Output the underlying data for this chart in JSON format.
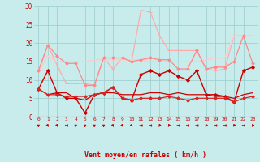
{
  "title": "",
  "xlabel": "Vent moyen/en rafales ( km/h )",
  "ylabel": "",
  "xlim": [
    -0.5,
    23.5
  ],
  "ylim": [
    0,
    30
  ],
  "yticks": [
    0,
    5,
    10,
    15,
    20,
    25,
    30
  ],
  "xticks": [
    0,
    1,
    2,
    3,
    4,
    5,
    6,
    7,
    8,
    9,
    10,
    11,
    12,
    13,
    14,
    15,
    16,
    17,
    18,
    19,
    20,
    21,
    22,
    23
  ],
  "background_color": "#c8ecec",
  "grid_color": "#99cccc",
  "arrow_row_color": "#cc0000",
  "series": [
    {
      "y": [
        7.5,
        12.5,
        6.5,
        5,
        5,
        1,
        6,
        6.5,
        8,
        5,
        4.5,
        11.5,
        12.5,
        11.5,
        12.5,
        11,
        10,
        12.5,
        6,
        6,
        5.5,
        4,
        12.5,
        13.5
      ],
      "color": "#cc0000",
      "linewidth": 1.0,
      "marker": "D",
      "markersize": 2.0,
      "alpha": 1.0
    },
    {
      "y": [
        7.5,
        6.0,
        6.5,
        6.5,
        5.0,
        4.5,
        6.0,
        6.5,
        6.5,
        6.0,
        6.0,
        6.0,
        6.5,
        6.5,
        6.0,
        6.5,
        6.0,
        6.0,
        6.0,
        5.5,
        5.5,
        5.0,
        6.0,
        6.5
      ],
      "color": "#cc0000",
      "linewidth": 0.9,
      "marker": null,
      "markersize": 0,
      "alpha": 1.0
    },
    {
      "y": [
        12.5,
        19.5,
        14.0,
        9.0,
        9.0,
        9.0,
        8.5,
        16.0,
        13.0,
        16.0,
        15.0,
        29.0,
        28.5,
        22.0,
        18.0,
        18.0,
        18.0,
        18.0,
        13.0,
        12.5,
        13.0,
        22.0,
        22.0,
        22.0
      ],
      "color": "#ffaaaa",
      "linewidth": 0.9,
      "marker": "+",
      "markersize": 3.5,
      "alpha": 1.0
    },
    {
      "y": [
        12.5,
        16.5,
        15.0,
        15.0,
        15.0,
        15.0,
        15.5,
        15.5,
        15.5,
        15.5,
        15.5,
        15.5,
        15.0,
        15.0,
        15.0,
        15.0,
        15.0,
        15.0,
        15.5,
        16.0,
        16.0,
        22.0,
        22.0,
        22.0
      ],
      "color": "#ffcccc",
      "linewidth": 1.2,
      "marker": null,
      "markersize": 0,
      "alpha": 1.0
    },
    {
      "y": [
        12.5,
        19.5,
        16.5,
        14.5,
        14.5,
        8.5,
        8.5,
        16.0,
        16.0,
        16.0,
        15.0,
        15.5,
        16.0,
        15.5,
        15.5,
        13.0,
        13.0,
        18.0,
        13.0,
        13.5,
        13.5,
        15.0,
        22.0,
        14.5
      ],
      "color": "#ff8888",
      "linewidth": 0.9,
      "marker": "D",
      "markersize": 1.8,
      "alpha": 1.0
    },
    {
      "y": [
        7.5,
        6.0,
        6.0,
        5.5,
        5.5,
        5.5,
        6.0,
        6.5,
        8.0,
        5.0,
        4.5,
        5.0,
        5.0,
        5.0,
        5.5,
        5.0,
        4.5,
        5.0,
        5.0,
        5.0,
        5.0,
        4.0,
        5.0,
        5.5
      ],
      "color": "#dd2222",
      "linewidth": 0.9,
      "marker": "D",
      "markersize": 1.8,
      "alpha": 1.0
    }
  ],
  "arrow_angles": [
    0,
    45,
    45,
    270,
    0,
    0,
    0,
    0,
    45,
    45,
    45,
    270,
    270,
    315,
    315,
    270,
    270,
    270,
    315,
    270,
    270,
    315,
    270,
    315
  ]
}
